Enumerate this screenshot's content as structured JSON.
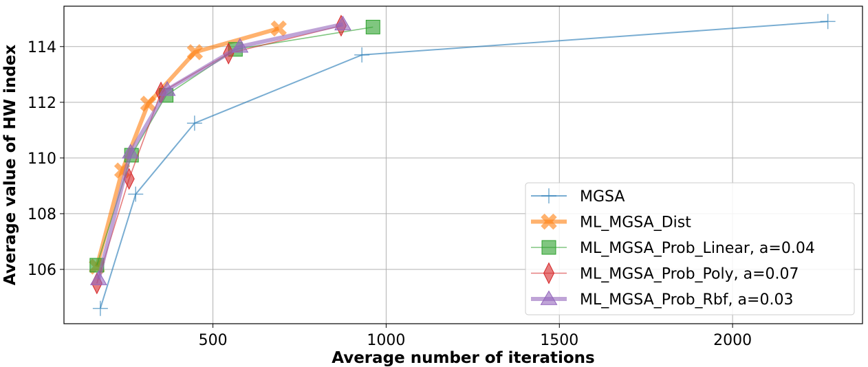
{
  "chart_data": {
    "type": "line",
    "title": "",
    "xlabel": "Average number of iterations",
    "ylabel": "Average value of HW index",
    "xlim": [
      70,
      2375
    ],
    "ylim": [
      104.05,
      115.45
    ],
    "xticks": [
      500,
      1000,
      1500,
      2000
    ],
    "yticks": [
      106,
      108,
      110,
      112,
      114
    ],
    "grid": true,
    "legend_position": "lower-right",
    "series": [
      {
        "name": "MGSA",
        "color": "#1f77b4",
        "marker": "plus",
        "x": [
          175,
          277,
          447,
          930,
          2275
        ],
        "y": [
          104.6,
          108.7,
          111.25,
          113.7,
          114.9
        ]
      },
      {
        "name": "ML_MGSA_Dist",
        "color": "#ff7f0e",
        "marker": "x-filled",
        "x": [
          165,
          238,
          313,
          448,
          690
        ],
        "y": [
          106.1,
          109.55,
          111.95,
          113.8,
          114.65
        ]
      },
      {
        "name": "ML_MGSA_Prob_Linear, a=0.04",
        "color": "#2ca02c",
        "marker": "square",
        "x": [
          165,
          265,
          365,
          565,
          962
        ],
        "y": [
          106.15,
          110.1,
          112.25,
          113.9,
          114.7
        ]
      },
      {
        "name": "ML_MGSA_Prob_Poly, a=0.07",
        "color": "#d62728",
        "marker": "diamond",
        "x": [
          165,
          258,
          350,
          545,
          870
        ],
        "y": [
          105.5,
          109.25,
          112.35,
          113.75,
          114.75
        ]
      },
      {
        "name": "ML_MGSA_Prob_Rbf, a=0.03",
        "color": "#9467bd",
        "marker": "triangle",
        "x": [
          170,
          262,
          368,
          578,
          875
        ],
        "y": [
          105.65,
          110.2,
          112.45,
          114.0,
          114.8
        ]
      }
    ]
  }
}
